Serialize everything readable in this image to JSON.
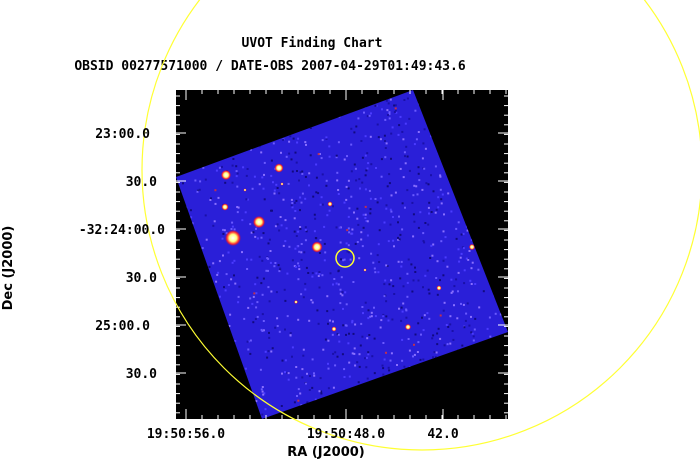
{
  "header": {
    "title": "UVOT Finding Chart",
    "subtitle": "OBSID 00277571000 / DATE-OBS 2007-04-29T01:49:43.6"
  },
  "axes": {
    "xlabel": "RA (J2000)",
    "ylabel": "Dec (J2000)",
    "x_ticks": [
      "19:50:56.0",
      "19:50:48.0",
      "42.0"
    ],
    "y_ticks": [
      "23:00.0",
      "30.0",
      "-32:24:00.0",
      "30.0",
      "25:00.0",
      "30.0"
    ]
  },
  "colors": {
    "image_background": "#000000",
    "field_color": "#2a1fd8",
    "marker_color": "#ffff33"
  }
}
